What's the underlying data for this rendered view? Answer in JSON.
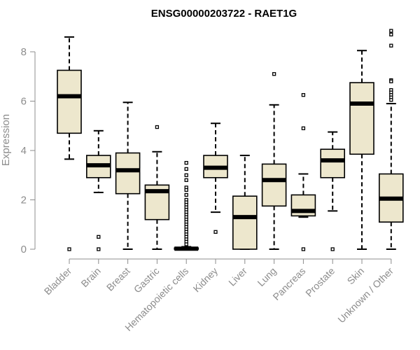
{
  "chart_data": {
    "type": "boxplot",
    "title": "ENSG00000203722 - RAET1G",
    "ylabel": "Expression",
    "ylim": [
      0,
      9
    ],
    "yticks": [
      0,
      2,
      4,
      6,
      8
    ],
    "colors": {
      "box_fill": "#ede7cd",
      "box_stroke": "#000000",
      "axis": "#8c8c8c"
    },
    "categories": [
      "Bladder",
      "Brain",
      "Breast",
      "Gastric",
      "Hematopoietic cells",
      "Kidney",
      "Liver",
      "Lung",
      "Pancreas",
      "Prostate",
      "Skin",
      "Unknown / Other"
    ],
    "boxes": [
      {
        "category": "Bladder",
        "whisker_low": 3.65,
        "q1": 4.7,
        "median": 6.2,
        "q3": 7.25,
        "whisker_high": 8.6,
        "outliers": [
          0
        ]
      },
      {
        "category": "Brain",
        "whisker_low": 2.3,
        "q1": 2.9,
        "median": 3.4,
        "q3": 3.8,
        "whisker_high": 4.8,
        "outliers": [
          0.5,
          0
        ]
      },
      {
        "category": "Breast",
        "whisker_low": 0,
        "q1": 2.25,
        "median": 3.2,
        "q3": 3.9,
        "whisker_high": 5.95,
        "outliers": []
      },
      {
        "category": "Gastric",
        "whisker_low": 0,
        "q1": 1.2,
        "median": 2.35,
        "q3": 2.6,
        "whisker_high": 3.95,
        "outliers": [
          4.95
        ]
      },
      {
        "category": "Hematopoietic cells",
        "whisker_low": 0,
        "q1": 0,
        "median": 0.02,
        "q3": 0.05,
        "whisker_high": 0.1,
        "outliers": [
          3.5,
          3.25,
          3.0,
          2.8,
          2.5,
          2.4,
          2.2,
          2.0,
          1.9,
          1.8,
          1.7,
          1.6,
          1.5,
          1.4,
          1.3,
          1.2,
          1.1,
          1.0,
          0.9,
          0.8,
          0.7,
          0.6,
          0.5,
          0.4,
          0.3,
          0.2
        ]
      },
      {
        "category": "Kidney",
        "whisker_low": 1.5,
        "q1": 2.9,
        "median": 3.3,
        "q3": 3.8,
        "whisker_high": 5.1,
        "outliers": [
          0.7
        ]
      },
      {
        "category": "Liver",
        "whisker_low": 0,
        "q1": 0,
        "median": 1.3,
        "q3": 2.15,
        "whisker_high": 3.8,
        "outliers": []
      },
      {
        "category": "Lung",
        "whisker_low": 0,
        "q1": 1.75,
        "median": 2.8,
        "q3": 3.45,
        "whisker_high": 5.85,
        "outliers": [
          7.1
        ]
      },
      {
        "category": "Pancreas",
        "whisker_low": 1.3,
        "q1": 1.35,
        "median": 1.55,
        "q3": 2.2,
        "whisker_high": 3.05,
        "outliers": [
          6.25,
          4.9,
          0
        ]
      },
      {
        "category": "Prostate",
        "whisker_low": 1.55,
        "q1": 2.9,
        "median": 3.6,
        "q3": 4.05,
        "whisker_high": 4.75,
        "outliers": [
          0
        ]
      },
      {
        "category": "Skin",
        "whisker_low": 0,
        "q1": 3.85,
        "median": 5.9,
        "q3": 6.75,
        "whisker_high": 8.05,
        "outliers": []
      },
      {
        "category": "Unknown / Other",
        "whisker_low": 0,
        "q1": 1.1,
        "median": 2.05,
        "q3": 3.05,
        "whisker_high": 5.9,
        "outliers": [
          8.85,
          8.7,
          8.25,
          6.85,
          6.8,
          6.45,
          6.35,
          6.25,
          6.15,
          6.05
        ]
      }
    ]
  }
}
